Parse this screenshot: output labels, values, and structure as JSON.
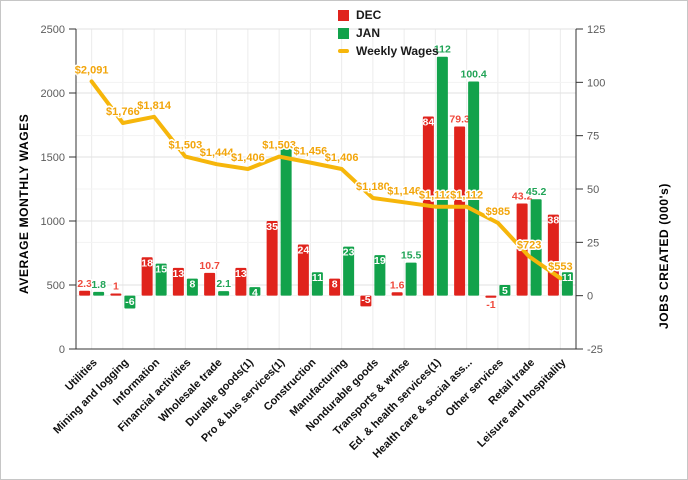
{
  "chart_data": {
    "type": "combo-bar-line",
    "title": "",
    "categories": [
      "Utilities",
      "Mining and logging",
      "Information",
      "Financial activities",
      "Wholesale trade",
      "Durable goods(1)",
      "Pro & bus services(1)",
      "Construction",
      "Manufacturing",
      "Nondurable goods",
      "Transports & wrhse",
      "Ed. & health services(1)",
      "Health care & social ass...",
      "Other services",
      "Retail trade",
      "Leisure and hospitality"
    ],
    "left_axis_title": "AVERAGE MONTHLY WAGES",
    "right_axis_title": "JOBS CREATED (000's)",
    "left_ylim": [
      0,
      2500
    ],
    "right_ylim": [
      -25,
      125
    ],
    "left_ticks": [
      "0",
      "500",
      "1000",
      "1500",
      "2000",
      "2500"
    ],
    "right_ticks": [
      "-25",
      "0",
      "25",
      "50",
      "75",
      "100",
      "125"
    ],
    "grid": true,
    "legend_position": "top",
    "series": [
      {
        "name": "DEC",
        "type": "bar",
        "axis": "right",
        "color": "#e0231c",
        "label_color": "#ef4a3d",
        "values": [
          2.3,
          1,
          18,
          13,
          10.7,
          13,
          35,
          24,
          8,
          -5,
          1.6,
          84,
          79.3,
          -1,
          43.2,
          38
        ],
        "labels": [
          "2.3",
          "1",
          "18",
          "13",
          "10.7",
          "13",
          "35",
          "24",
          "8",
          "-5",
          "1.6",
          "84",
          "79.3",
          "-1",
          "43.2",
          "38"
        ],
        "label_pos": [
          "above",
          "above",
          "in",
          "in",
          "above",
          "in",
          "in",
          "in",
          "in",
          "in",
          "above",
          "in",
          "above",
          "below",
          "above",
          "in"
        ]
      },
      {
        "name": "JAN",
        "type": "bar",
        "axis": "right",
        "color": "#12a24b",
        "label_color": "#21a457",
        "values": [
          1.8,
          -6,
          15,
          8,
          2.1,
          4,
          71,
          11,
          23,
          19,
          15.5,
          112,
          100.4,
          5,
          45.2,
          11
        ],
        "labels": [
          "1.8",
          "-6",
          "15",
          "8",
          "2.1",
          "4",
          "",
          "11",
          "23",
          "19",
          "15.5",
          "112",
          "100.4",
          "5",
          "45.2",
          "11"
        ],
        "label_pos": [
          "above",
          "in",
          "in",
          "in",
          "above",
          "in",
          "none",
          "in",
          "in",
          "in",
          "above",
          "above",
          "above",
          "in",
          "above",
          "in"
        ]
      },
      {
        "name": "Weekly Wages",
        "type": "line",
        "axis": "left",
        "color": "#f6b60b",
        "label_color": "#f2a50a",
        "values": [
          2091,
          1766,
          1814,
          1503,
          1444,
          1406,
          1503,
          1456,
          1406,
          1180,
          1146,
          1112,
          1112,
          985,
          723,
          553
        ],
        "labels": [
          "$2,091",
          "$1,766",
          "$1,814",
          "$1,503",
          "$1,444",
          "$1,406",
          "$1,503",
          "$1,456",
          "$1,406",
          "$1,180",
          "$1,146",
          "$1,112",
          "$1,112",
          "$985",
          "$723",
          "$553"
        ]
      }
    ]
  }
}
